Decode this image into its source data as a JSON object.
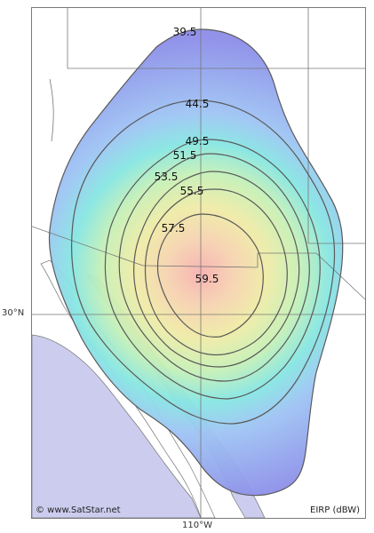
{
  "map": {
    "type": "satellite footprint (EIRP contours)",
    "contour_levels": [
      "39.5",
      "44.5",
      "49.5",
      "51.5",
      "53.5",
      "55.5",
      "57.5",
      "59.5"
    ],
    "latitude_label": "30°N",
    "longitude_label": "110°W",
    "credit": "© www.SatStar.net",
    "units_label": "EIRP (dBW)",
    "colors": {
      "land": "#ffffff",
      "sea": "#ccccee",
      "border": "#777777",
      "contour": "#555555",
      "outer": "#8c8ce8",
      "mid": "#7ddde6",
      "inner": "#f0e68c",
      "peak": "#f7b6b6"
    }
  }
}
